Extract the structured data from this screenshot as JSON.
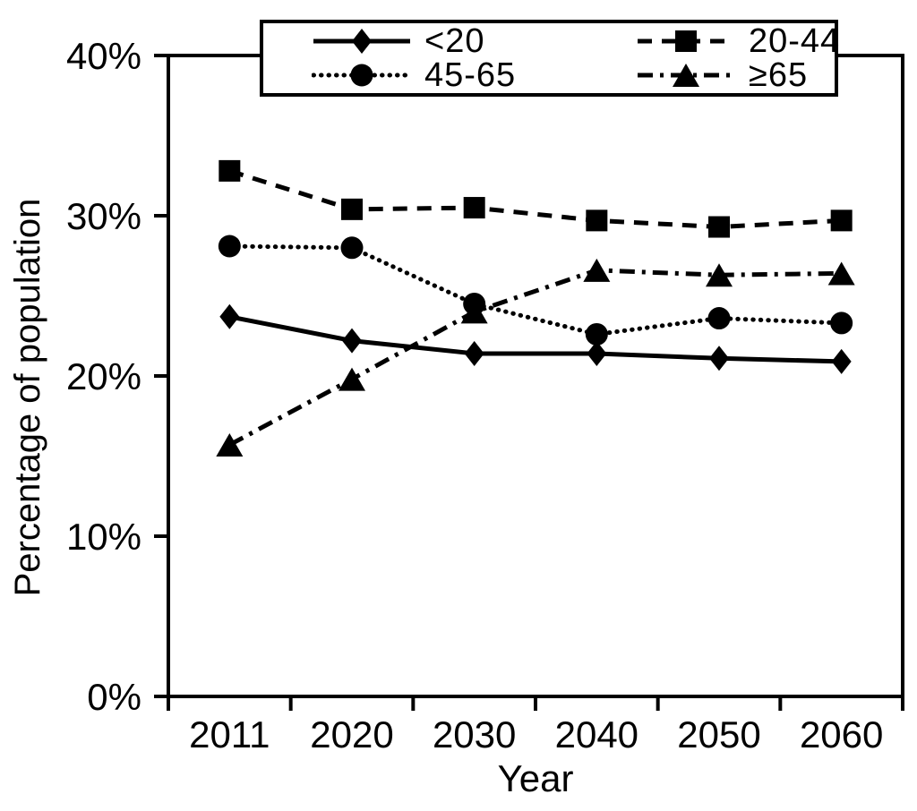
{
  "figure": {
    "background": "#ffffff",
    "foreground": "#000000"
  },
  "chart_data": {
    "type": "line",
    "title": "",
    "xlabel": "Year",
    "ylabel": "Percentage of population",
    "x": [
      "2011",
      "2020",
      "2030",
      "2040",
      "2050",
      "2060"
    ],
    "ylim": [
      0,
      40
    ],
    "yticks": [
      0,
      10,
      20,
      30,
      40
    ],
    "ytick_suffix": "%",
    "grid": false,
    "legend_position": "top-center-boxed",
    "legend_columns": 2,
    "series": [
      {
        "name": "<20",
        "marker": "diamond",
        "line_style": "solid",
        "values": [
          23.7,
          22.2,
          21.4,
          21.4,
          21.1,
          20.9
        ]
      },
      {
        "name": "20-44",
        "marker": "square",
        "line_style": "dashed",
        "values": [
          32.8,
          30.4,
          30.5,
          29.7,
          29.3,
          29.7
        ]
      },
      {
        "name": "45-65",
        "marker": "circle",
        "line_style": "dotted",
        "values": [
          28.1,
          28.0,
          24.5,
          22.6,
          23.6,
          23.3
        ]
      },
      {
        "name": "≥65",
        "marker": "triangle",
        "line_style": "dashdot",
        "values": [
          15.7,
          19.8,
          24.0,
          26.6,
          26.3,
          26.4
        ]
      }
    ]
  }
}
